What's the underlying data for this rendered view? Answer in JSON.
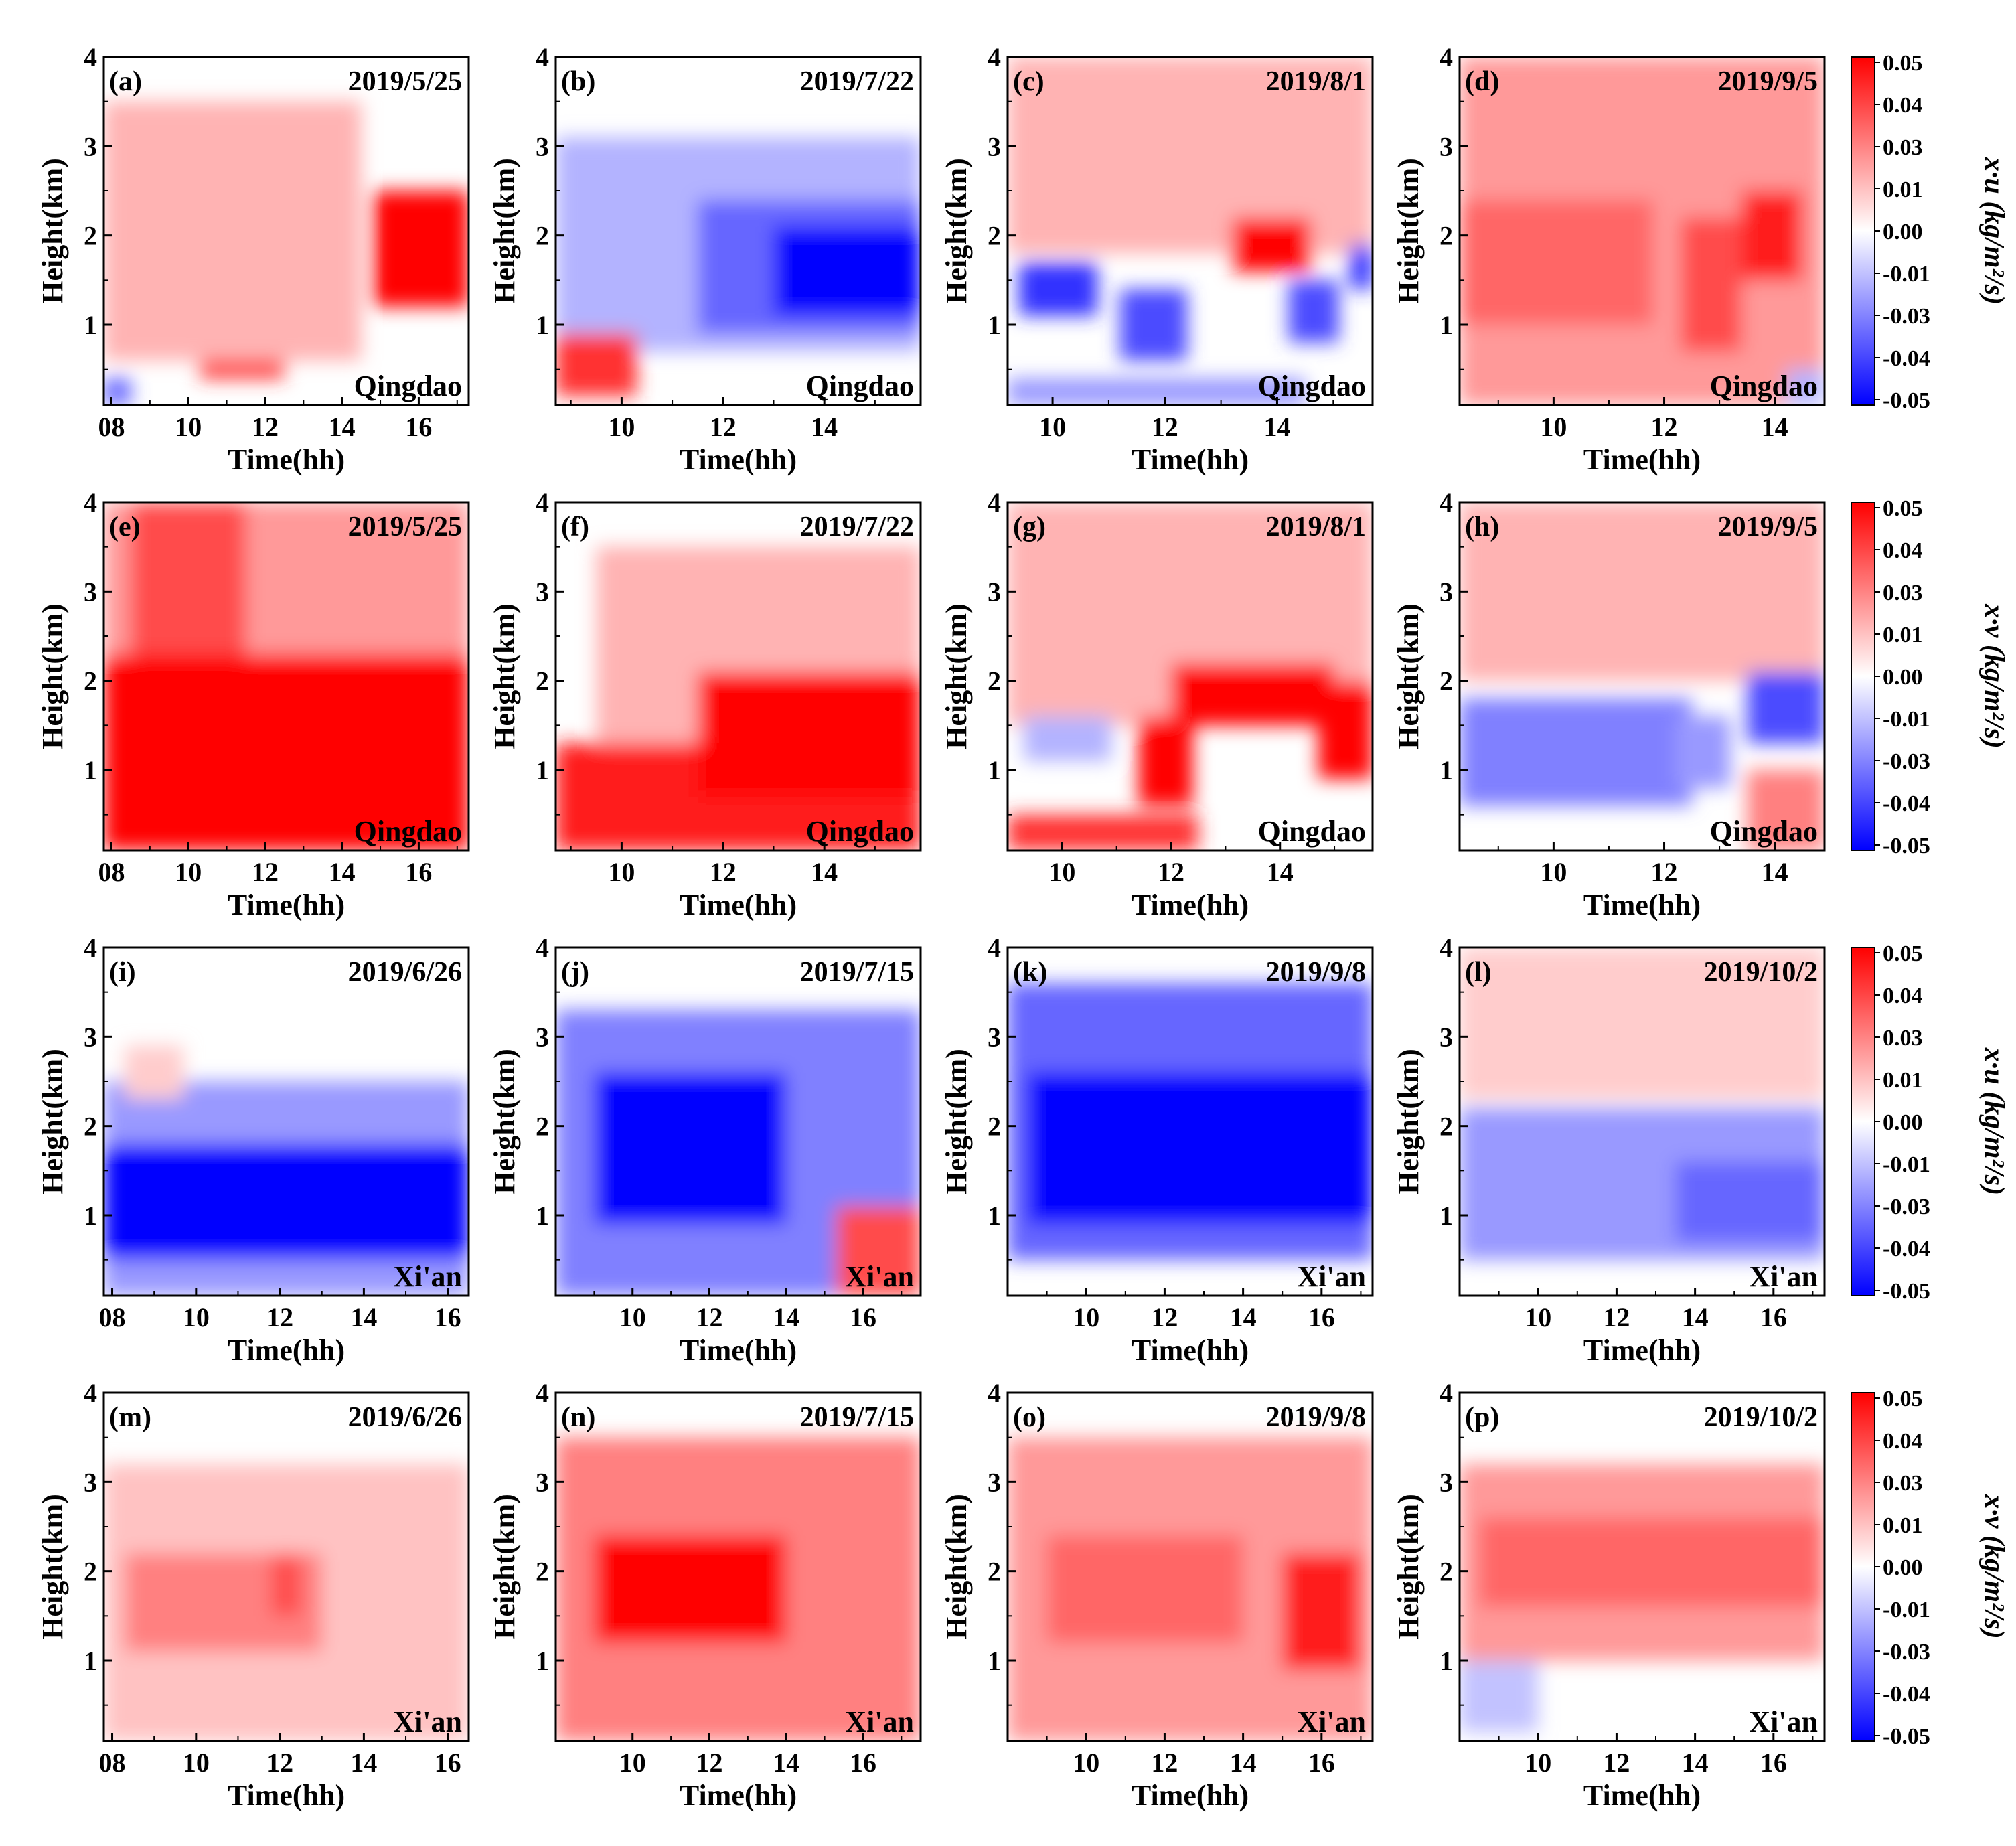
{
  "figure": {
    "x_label": "Time(hh)",
    "y_label": "Height(km)",
    "y_ticks": [
      "1",
      "2",
      "3",
      "4"
    ],
    "colorbar_ticks": [
      "0.05",
      "0.04",
      "0.03",
      "0.01",
      "0.00",
      "-0.01",
      "-0.03",
      "-0.04",
      "-0.05"
    ],
    "colorbar_labels": {
      "u": "x·u (kg/m²/s)",
      "v": "x·v (kg/m²/s)"
    },
    "colors": {
      "positive": "#ff0000",
      "zero": "#ffffff",
      "negative": "#0000ff"
    }
  },
  "chart_data": [
    {
      "type": "heatmap",
      "panel": "(a)",
      "date": "2019/5/25",
      "station": "Qingdao",
      "component": "u",
      "xlim": [
        7.8,
        17.3
      ],
      "ylim": [
        0.1,
        4
      ],
      "x_ticks": [
        "08",
        "10",
        "12",
        "14",
        "16"
      ],
      "x_tick_values": [
        8,
        10,
        12,
        14,
        16
      ],
      "features": [
        {
          "x": [
            14.8,
            17.3
          ],
          "y": [
            1.2,
            2.5
          ],
          "value": 0.05
        },
        {
          "x": [
            10.3,
            12.5
          ],
          "y": [
            0.4,
            1.3
          ],
          "value": 0.04
        },
        {
          "x": [
            7.8,
            14.5
          ],
          "y": [
            0.6,
            3.5
          ],
          "value": 0.015
        },
        {
          "x": [
            7.8,
            8.5
          ],
          "y": [
            0.1,
            0.4
          ],
          "value": -0.03
        }
      ]
    },
    {
      "type": "heatmap",
      "panel": "(b)",
      "date": "2019/7/22",
      "station": "Qingdao",
      "component": "u",
      "xlim": [
        8.7,
        15.9
      ],
      "ylim": [
        0.1,
        4
      ],
      "x_ticks": [
        "10",
        "12",
        "14"
      ],
      "x_tick_values": [
        10,
        12,
        14
      ],
      "features": [
        {
          "x": [
            8.7,
            15.9
          ],
          "y": [
            0.7,
            3.1
          ],
          "value": -0.015
        },
        {
          "x": [
            11.5,
            15.9
          ],
          "y": [
            0.9,
            2.4
          ],
          "value": -0.03
        },
        {
          "x": [
            13.0,
            15.9
          ],
          "y": [
            1.1,
            2.1
          ],
          "value": -0.05
        },
        {
          "x": [
            8.7,
            10.3
          ],
          "y": [
            0.2,
            0.9
          ],
          "value": 0.04
        }
      ]
    },
    {
      "type": "heatmap",
      "panel": "(c)",
      "date": "2019/8/1",
      "station": "Qingdao",
      "component": "u",
      "xlim": [
        9.2,
        15.7
      ],
      "ylim": [
        0.1,
        4
      ],
      "x_ticks": [
        "10",
        "12",
        "14"
      ],
      "x_tick_values": [
        10,
        12,
        14
      ],
      "features": [
        {
          "x": [
            9.2,
            15.7
          ],
          "y": [
            1.8,
            4.0
          ],
          "value": 0.015
        },
        {
          "x": [
            13.2,
            14.6
          ],
          "y": [
            1.6,
            2.2
          ],
          "value": 0.05
        },
        {
          "x": [
            9.4,
            10.8
          ],
          "y": [
            1.1,
            1.7
          ],
          "value": -0.04
        },
        {
          "x": [
            11.2,
            12.4
          ],
          "y": [
            0.6,
            1.4
          ],
          "value": -0.035
        },
        {
          "x": [
            14.2,
            15.1
          ],
          "y": [
            0.8,
            1.5
          ],
          "value": -0.035
        },
        {
          "x": [
            15.3,
            15.7
          ],
          "y": [
            1.4,
            1.9
          ],
          "value": -0.04
        },
        {
          "x": [
            9.2,
            14.5
          ],
          "y": [
            0.1,
            0.4
          ],
          "value": -0.02
        }
      ]
    },
    {
      "type": "heatmap",
      "panel": "(d)",
      "date": "2019/9/5",
      "station": "Qingdao",
      "component": "u",
      "xlim": [
        8.3,
        14.9
      ],
      "ylim": [
        0.1,
        4
      ],
      "x_ticks": [
        "10",
        "12",
        "14"
      ],
      "x_tick_values": [
        10,
        12,
        14
      ],
      "features": [
        {
          "x": [
            8.3,
            14.9
          ],
          "y": [
            0.1,
            4.0
          ],
          "value": 0.02
        },
        {
          "x": [
            8.3,
            11.8
          ],
          "y": [
            1.0,
            2.4
          ],
          "value": 0.03
        },
        {
          "x": [
            12.3,
            13.4
          ],
          "y": [
            0.7,
            2.2
          ],
          "value": 0.035
        },
        {
          "x": [
            13.4,
            14.5
          ],
          "y": [
            1.5,
            2.5
          ],
          "value": 0.045
        },
        {
          "x": [
            14.2,
            14.9
          ],
          "y": [
            0.1,
            0.5
          ],
          "value": -0.015
        }
      ]
    },
    {
      "type": "heatmap",
      "panel": "(e)",
      "date": "2019/5/25",
      "station": "Qingdao",
      "component": "v",
      "xlim": [
        7.8,
        17.3
      ],
      "ylim": [
        0.1,
        4
      ],
      "x_ticks": [
        "08",
        "10",
        "12",
        "14",
        "16"
      ],
      "x_tick_values": [
        8,
        10,
        12,
        14,
        16
      ],
      "features": [
        {
          "x": [
            7.8,
            17.3
          ],
          "y": [
            0.1,
            4.0
          ],
          "value": 0.02
        },
        {
          "x": [
            7.8,
            17.3
          ],
          "y": [
            0.1,
            2.3
          ],
          "value": 0.05
        },
        {
          "x": [
            8.5,
            11.5
          ],
          "y": [
            2.3,
            4.0
          ],
          "value": 0.035
        }
      ]
    },
    {
      "type": "heatmap",
      "panel": "(f)",
      "date": "2019/7/22",
      "station": "Qingdao",
      "component": "v",
      "xlim": [
        8.7,
        15.9
      ],
      "ylim": [
        0.1,
        4
      ],
      "x_ticks": [
        "10",
        "12",
        "14"
      ],
      "x_tick_values": [
        10,
        12,
        14
      ],
      "features": [
        {
          "x": [
            9.5,
            15.9
          ],
          "y": [
            1.0,
            3.5
          ],
          "value": 0.015
        },
        {
          "x": [
            8.7,
            15.9
          ],
          "y": [
            0.1,
            1.3
          ],
          "value": 0.045
        },
        {
          "x": [
            11.5,
            15.9
          ],
          "y": [
            0.7,
            2.1
          ],
          "value": 0.05
        }
      ]
    },
    {
      "type": "heatmap",
      "panel": "(g)",
      "date": "2019/8/1",
      "station": "Qingdao",
      "component": "v",
      "xlim": [
        9.0,
        15.7
      ],
      "ylim": [
        0.1,
        4
      ],
      "x_ticks": [
        "10",
        "12",
        "14"
      ],
      "x_tick_values": [
        10,
        12,
        14
      ],
      "features": [
        {
          "x": [
            9.0,
            15.7
          ],
          "y": [
            1.5,
            4.0
          ],
          "value": 0.015
        },
        {
          "x": [
            12.0,
            15.0
          ],
          "y": [
            1.5,
            2.2
          ],
          "value": 0.05
        },
        {
          "x": [
            14.7,
            15.7
          ],
          "y": [
            0.9,
            2.0
          ],
          "value": 0.05
        },
        {
          "x": [
            11.4,
            12.4
          ],
          "y": [
            0.6,
            1.6
          ],
          "value": 0.05
        },
        {
          "x": [
            9.0,
            12.5
          ],
          "y": [
            0.1,
            0.5
          ],
          "value": 0.04
        },
        {
          "x": [
            9.3,
            10.9
          ],
          "y": [
            1.1,
            1.6
          ],
          "value": -0.015
        }
      ]
    },
    {
      "type": "heatmap",
      "panel": "(h)",
      "date": "2019/9/5",
      "station": "Qingdao",
      "component": "v",
      "xlim": [
        8.3,
        14.9
      ],
      "ylim": [
        0.1,
        4
      ],
      "x_ticks": [
        "10",
        "12",
        "14"
      ],
      "x_tick_values": [
        10,
        12,
        14
      ],
      "features": [
        {
          "x": [
            8.3,
            14.9
          ],
          "y": [
            2.0,
            4.0
          ],
          "value": 0.015
        },
        {
          "x": [
            8.3,
            12.5
          ],
          "y": [
            0.6,
            1.8
          ],
          "value": -0.025
        },
        {
          "x": [
            12.2,
            13.2
          ],
          "y": [
            0.8,
            1.6
          ],
          "value": -0.02
        },
        {
          "x": [
            13.5,
            14.9
          ],
          "y": [
            1.3,
            2.1
          ],
          "value": -0.035
        },
        {
          "x": [
            13.5,
            14.9
          ],
          "y": [
            0.1,
            1.0
          ],
          "value": 0.025
        }
      ]
    },
    {
      "type": "heatmap",
      "panel": "(i)",
      "date": "2019/6/26",
      "station": "Xi'an",
      "component": "u",
      "xlim": [
        7.8,
        16.5
      ],
      "ylim": [
        0.1,
        4
      ],
      "x_ticks": [
        "08",
        "10",
        "12",
        "14",
        "16"
      ],
      "x_tick_values": [
        8,
        10,
        12,
        14,
        16
      ],
      "features": [
        {
          "x": [
            7.8,
            16.5
          ],
          "y": [
            0.1,
            2.5
          ],
          "value": -0.02
        },
        {
          "x": [
            7.8,
            16.5
          ],
          "y": [
            0.5,
            1.8
          ],
          "value": -0.05
        },
        {
          "x": [
            8.3,
            9.7
          ],
          "y": [
            2.3,
            2.9
          ],
          "value": 0.01
        }
      ]
    },
    {
      "type": "heatmap",
      "panel": "(j)",
      "date": "2019/7/15",
      "station": "Xi'an",
      "component": "u",
      "xlim": [
        8.0,
        17.5
      ],
      "ylim": [
        0.1,
        4
      ],
      "x_ticks": [
        "10",
        "12",
        "14",
        "16"
      ],
      "x_tick_values": [
        10,
        12,
        14,
        16
      ],
      "features": [
        {
          "x": [
            8.0,
            17.5
          ],
          "y": [
            0.1,
            3.3
          ],
          "value": -0.025
        },
        {
          "x": [
            9.0,
            14.0
          ],
          "y": [
            0.9,
            2.6
          ],
          "value": -0.05
        },
        {
          "x": [
            15.3,
            17.5
          ],
          "y": [
            0.1,
            1.1
          ],
          "value": 0.035
        }
      ]
    },
    {
      "type": "heatmap",
      "panel": "(k)",
      "date": "2019/9/8",
      "station": "Xi'an",
      "component": "u",
      "xlim": [
        8.0,
        17.3
      ],
      "ylim": [
        0.1,
        4
      ],
      "x_ticks": [
        "10",
        "12",
        "14",
        "16"
      ],
      "x_tick_values": [
        10,
        12,
        14,
        16
      ],
      "features": [
        {
          "x": [
            8.0,
            17.3
          ],
          "y": [
            0.5,
            3.6
          ],
          "value": -0.03
        },
        {
          "x": [
            8.5,
            17.3
          ],
          "y": [
            0.9,
            2.6
          ],
          "value": -0.05
        }
      ]
    },
    {
      "type": "heatmap",
      "panel": "(l)",
      "date": "2019/10/2",
      "station": "Xi'an",
      "component": "u",
      "xlim": [
        8.0,
        17.3
      ],
      "ylim": [
        0.1,
        4
      ],
      "x_ticks": [
        "10",
        "12",
        "14",
        "16"
      ],
      "x_tick_values": [
        10,
        12,
        14,
        16
      ],
      "features": [
        {
          "x": [
            8.0,
            17.3
          ],
          "y": [
            2.3,
            4.0
          ],
          "value": 0.01
        },
        {
          "x": [
            8.0,
            17.3
          ],
          "y": [
            0.5,
            2.2
          ],
          "value": -0.02
        },
        {
          "x": [
            13.5,
            17.3
          ],
          "y": [
            0.7,
            1.6
          ],
          "value": -0.03
        }
      ]
    },
    {
      "type": "heatmap",
      "panel": "(m)",
      "date": "2019/6/26",
      "station": "Xi'an",
      "component": "v",
      "xlim": [
        7.8,
        16.5
      ],
      "ylim": [
        0.1,
        4
      ],
      "x_ticks": [
        "08",
        "10",
        "12",
        "14",
        "16"
      ],
      "x_tick_values": [
        8,
        10,
        12,
        14,
        16
      ],
      "features": [
        {
          "x": [
            7.8,
            16.5
          ],
          "y": [
            0.1,
            3.2
          ],
          "value": 0.012
        },
        {
          "x": [
            8.3,
            13.0
          ],
          "y": [
            1.1,
            2.2
          ],
          "value": 0.025
        },
        {
          "x": [
            11.8,
            12.5
          ],
          "y": [
            1.5,
            2.2
          ],
          "value": 0.035
        }
      ]
    },
    {
      "type": "heatmap",
      "panel": "(n)",
      "date": "2019/7/15",
      "station": "Xi'an",
      "component": "v",
      "xlim": [
        8.0,
        17.5
      ],
      "ylim": [
        0.1,
        4
      ],
      "x_ticks": [
        "10",
        "12",
        "14",
        "16"
      ],
      "x_tick_values": [
        10,
        12,
        14,
        16
      ],
      "features": [
        {
          "x": [
            8.0,
            17.5
          ],
          "y": [
            0.1,
            3.5
          ],
          "value": 0.025
        },
        {
          "x": [
            9.0,
            14.0
          ],
          "y": [
            1.2,
            2.4
          ],
          "value": 0.05
        }
      ]
    },
    {
      "type": "heatmap",
      "panel": "(o)",
      "date": "2019/9/8",
      "station": "Xi'an",
      "component": "v",
      "xlim": [
        8.0,
        17.3
      ],
      "ylim": [
        0.1,
        4
      ],
      "x_ticks": [
        "10",
        "12",
        "14",
        "16"
      ],
      "x_tick_values": [
        10,
        12,
        14,
        16
      ],
      "features": [
        {
          "x": [
            8.0,
            17.3
          ],
          "y": [
            0.1,
            3.5
          ],
          "value": 0.02
        },
        {
          "x": [
            9.0,
            14.0
          ],
          "y": [
            1.2,
            2.4
          ],
          "value": 0.03
        },
        {
          "x": [
            15.0,
            17.0
          ],
          "y": [
            0.9,
            2.2
          ],
          "value": 0.045
        }
      ]
    },
    {
      "type": "heatmap",
      "panel": "(p)",
      "date": "2019/10/2",
      "station": "Xi'an",
      "component": "v",
      "xlim": [
        8.0,
        17.3
      ],
      "ylim": [
        0.1,
        4
      ],
      "x_ticks": [
        "10",
        "12",
        "14",
        "16"
      ],
      "x_tick_values": [
        10,
        12,
        14,
        16
      ],
      "features": [
        {
          "x": [
            8.0,
            17.3
          ],
          "y": [
            1.0,
            3.2
          ],
          "value": 0.02
        },
        {
          "x": [
            8.5,
            17.3
          ],
          "y": [
            1.6,
            2.6
          ],
          "value": 0.03
        },
        {
          "x": [
            8.0,
            10.0
          ],
          "y": [
            0.2,
            1.0
          ],
          "value": -0.012
        }
      ]
    }
  ]
}
